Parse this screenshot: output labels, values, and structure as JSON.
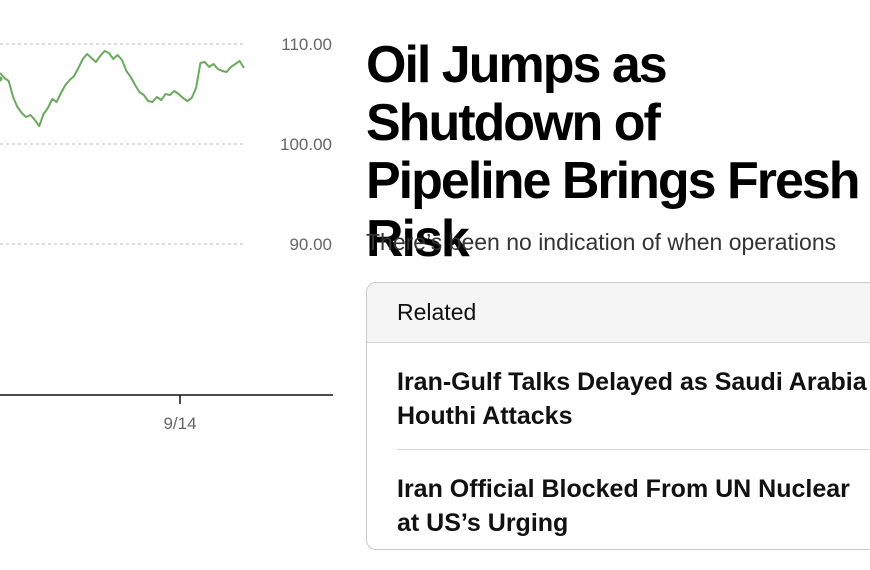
{
  "article": {
    "headline": "Oil Jumps as Shutdown of\nPipeline Brings Fresh\nRisk",
    "dek": "There’s been no indication of when operations"
  },
  "related": {
    "heading": "Related",
    "items": [
      {
        "title": "Iran-Gulf Talks Delayed as Saudi Arabia\nHouthi Attacks"
      },
      {
        "title": "Iran Official Blocked From UN Nuclear\nat US’s Urging"
      }
    ]
  },
  "chart_data": {
    "type": "line",
    "y_tick_labels": [
      "110.00",
      "100.00",
      "90.00"
    ],
    "y_ticks": [
      110,
      100,
      90
    ],
    "ylim": [
      80.9,
      114.4
    ],
    "x_tick_labels": [
      "9/14"
    ],
    "grid": true,
    "line_color": "#6aaa5e",
    "series": [
      {
        "values": [
          107.1,
          106.6,
          106.3,
          104.7,
          103.7,
          103.1,
          102.7,
          102.9,
          102.4,
          101.8,
          103.0,
          103.6,
          104.5,
          104.2,
          105.1,
          105.9,
          106.4,
          106.8,
          107.6,
          108.5,
          109.0,
          108.6,
          108.2,
          108.8,
          109.3,
          109.1,
          108.5,
          108.9,
          108.4,
          107.3,
          106.7,
          105.9,
          105.2,
          104.9,
          104.3,
          104.2,
          104.7,
          104.4,
          105.0,
          104.9,
          105.3,
          105.0,
          104.6,
          104.3,
          104.6,
          105.6,
          108.1,
          108.2,
          107.7,
          108.0,
          107.5,
          107.3,
          107.2,
          107.7,
          108.0,
          108.3,
          107.6
        ]
      }
    ]
  }
}
